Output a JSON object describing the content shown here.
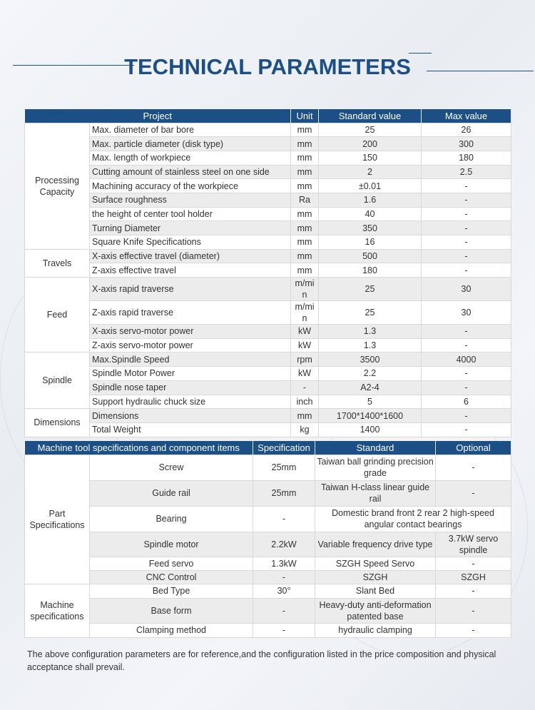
{
  "title": "TECHNICAL PARAMETERS",
  "table1": {
    "headers": [
      "Project",
      "Unit",
      "Standard value",
      "Max value"
    ],
    "groups": [
      {
        "name": "Processing Capacity",
        "rows": [
          [
            "Max. diameter of bar bore",
            "mm",
            "25",
            "26"
          ],
          [
            "Max. particle diameter (disk type)",
            "mm",
            "200",
            "300"
          ],
          [
            "Max. length of workpiece",
            "mm",
            "150",
            "180"
          ],
          [
            "Cutting amount of stainless steel on one side",
            "mm",
            "2",
            "2.5"
          ],
          [
            "Machining accuracy of the workpiece",
            "mm",
            "±0.01",
            "-"
          ],
          [
            "Surface roughness",
            "Ra",
            "1.6",
            "-"
          ],
          [
            "the height of center tool holder",
            "mm",
            "40",
            "-"
          ],
          [
            "Turning Diameter",
            "mm",
            "350",
            "-"
          ],
          [
            "Square Knife Specifications",
            "mm",
            "16",
            "-"
          ]
        ]
      },
      {
        "name": "Travels",
        "rows": [
          [
            "X-axis  effective travel (diameter)",
            "mm",
            "500",
            "-"
          ],
          [
            "Z-axis effective  travel",
            "mm",
            "180",
            "-"
          ]
        ]
      },
      {
        "name": "Feed",
        "rows": [
          [
            "X-axis rapid traverse",
            "m/min",
            "25",
            "30"
          ],
          [
            "Z-axis rapid traverse",
            "m/min",
            "25",
            "30"
          ],
          [
            "X-axis servo-motor power",
            "kW",
            "1.3",
            "-"
          ],
          [
            "Z-axis servo-motor power",
            "kW",
            "1.3",
            "-"
          ]
        ]
      },
      {
        "name": "Spindle",
        "rows": [
          [
            "Max.Spindle Speed",
            "rpm",
            "3500",
            "4000"
          ],
          [
            "Spindle Motor Power",
            "kW",
            "2.2",
            "-"
          ],
          [
            "Spindle nose taper",
            "-",
            "A2-4",
            "-"
          ],
          [
            "Support hydraulic chuck size",
            "inch",
            "5",
            "6"
          ]
        ]
      },
      {
        "name": "Dimensions",
        "rows": [
          [
            "Dimensions",
            "mm",
            "1700*1400*1600",
            "-"
          ],
          [
            "Total Weight",
            "kg",
            "1400",
            "-"
          ]
        ]
      }
    ]
  },
  "table2": {
    "headers": [
      "Machine tool specifications and component items",
      "Specification",
      "Standard",
      "Optional"
    ],
    "groups": [
      {
        "name": "Part Specifications",
        "rows": [
          [
            "Screw",
            "25mm",
            "Taiwan ball grinding precision grade",
            "-"
          ],
          [
            "Guide rail",
            "25mm",
            "Taiwan H-class linear guide rail",
            "-"
          ],
          [
            "Bearing",
            "-",
            "Domestic brand front 2 rear 2 high-speed angular contact bearings",
            null
          ],
          [
            "Spindle motor",
            "2.2kW",
            "Variable frequency drive type",
            "3.7kW servo spindle"
          ],
          [
            "Feed servo",
            "1.3kW",
            "SZGH Speed Servo",
            "-"
          ],
          [
            "CNC Control",
            "-",
            "SZGH",
            "SZGH"
          ]
        ]
      },
      {
        "name": "Machine specifications",
        "rows": [
          [
            "Bed Type",
            "30°",
            "Slant Bed",
            "-"
          ],
          [
            "Base form",
            "-",
            "Heavy-duty anti-deformation patented base",
            "-"
          ],
          [
            "Clamping method",
            "-",
            "hydraulic clamping",
            "-"
          ]
        ]
      }
    ]
  },
  "footer": "The above configuration parameters are for reference,and the configuration listed in the price composition and physical acceptance shall prevail.",
  "colors": {
    "header": "#1b4f86",
    "row_alt": "#ececec"
  }
}
